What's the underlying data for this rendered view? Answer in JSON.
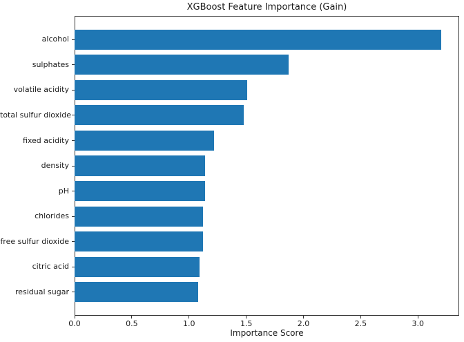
{
  "chart_data": {
    "type": "bar",
    "orientation": "horizontal",
    "title": "XGBoost Feature Importance (Gain)",
    "xlabel": "Importance Score",
    "ylabel": "",
    "categories": [
      "alcohol",
      "sulphates",
      "volatile acidity",
      "total sulfur dioxide",
      "fixed acidity",
      "density",
      "pH",
      "chlorides",
      "free sulfur dioxide",
      "citric acid",
      "residual sugar"
    ],
    "values": [
      3.2,
      1.87,
      1.51,
      1.48,
      1.22,
      1.14,
      1.14,
      1.12,
      1.12,
      1.09,
      1.08
    ],
    "xlim": [
      0,
      3.36
    ],
    "xticks": [
      0,
      0.5,
      1.0,
      1.5,
      2.0,
      2.5,
      3.0
    ],
    "xtick_labels": [
      "0.0",
      "0.5",
      "1.0",
      "1.5",
      "2.0",
      "2.5",
      "3.0"
    ],
    "bar_color": "#1f77b4",
    "bar_height_fraction": 0.8,
    "grid": false,
    "legend": "none",
    "background_color": "#ffffff",
    "spine_color": "#333333",
    "text_color": "#1a1a1a"
  }
}
